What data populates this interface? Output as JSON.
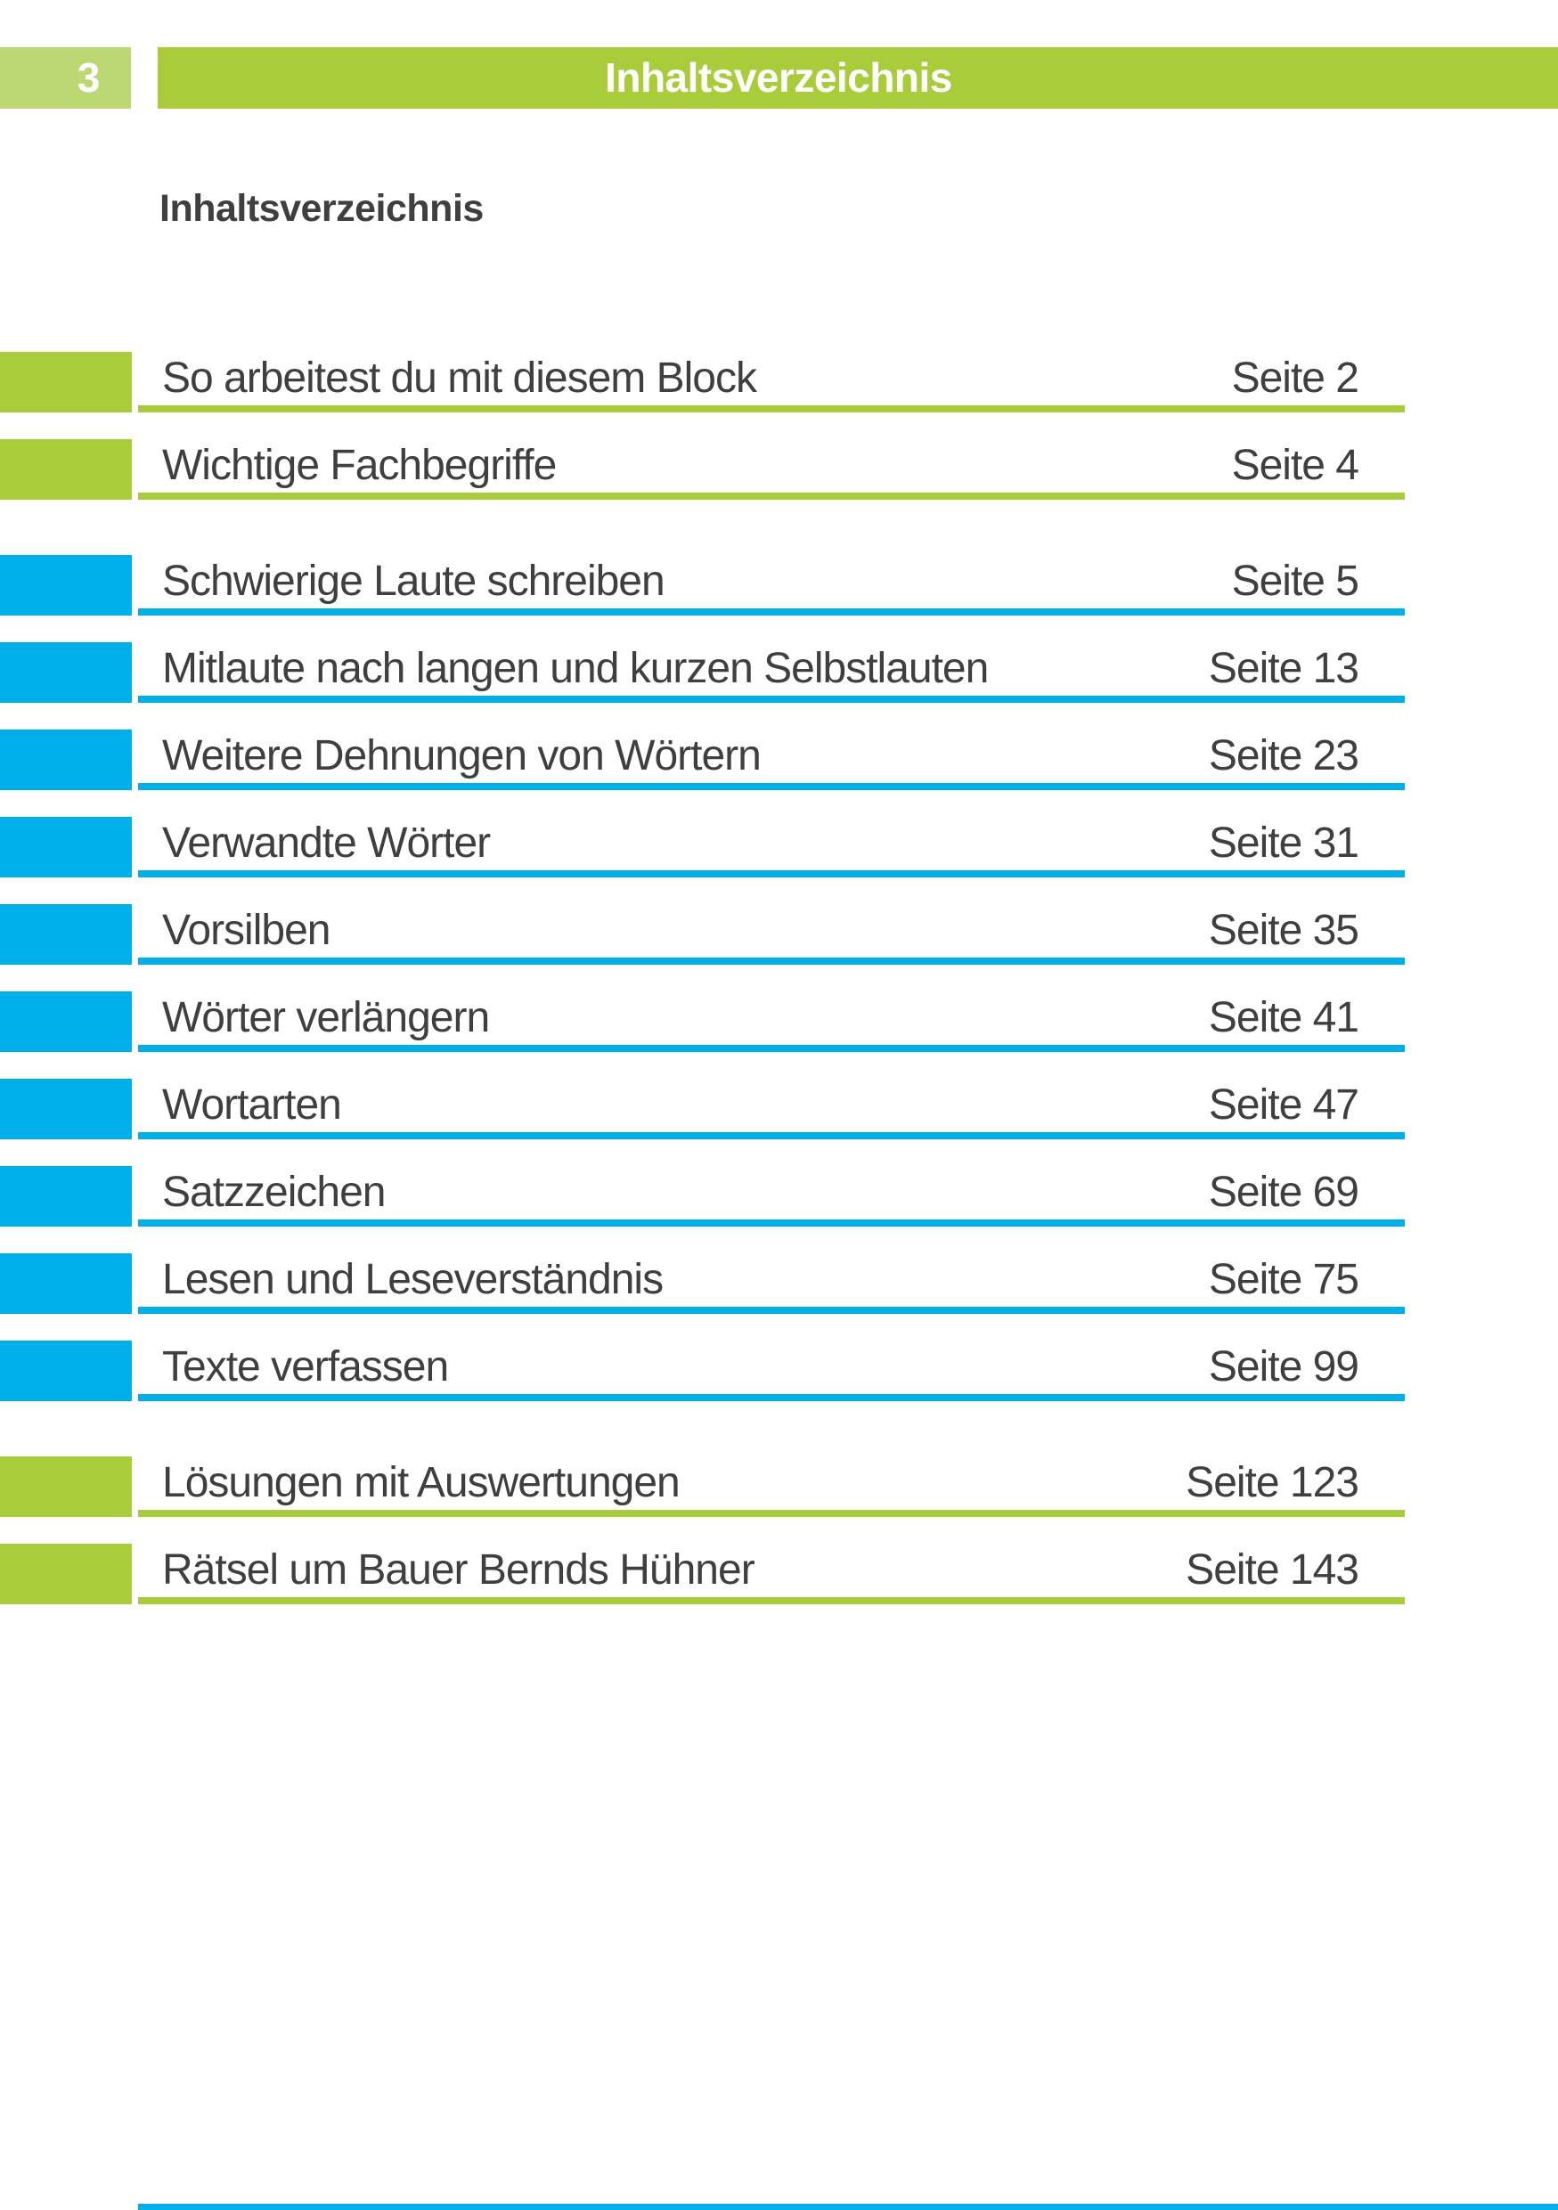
{
  "page": {
    "page_number": "3",
    "header_title": "Inhaltsverzeichnis",
    "heading": "Inhaltsverzeichnis"
  },
  "colors": {
    "green": "#a9cd3a",
    "light_green": "#bcd873",
    "blue": "#00aee9",
    "text": "#3e3f3f"
  },
  "toc": {
    "entries": [
      {
        "title": "So arbeitest du mit diesem Block",
        "page_label": "Seite 2",
        "color": "green",
        "section_start": false
      },
      {
        "title": "Wichtige Fachbegriffe",
        "page_label": "Seite 4",
        "color": "green",
        "section_start": false
      },
      {
        "title": "Schwierige Laute schreiben",
        "page_label": "Seite 5",
        "color": "blue",
        "section_start": true
      },
      {
        "title": "Mitlaute nach langen und kurzen Selbstlauten",
        "page_label": "Seite 13",
        "color": "blue",
        "section_start": false
      },
      {
        "title": "Weitere Dehnungen von Wörtern",
        "page_label": "Seite 23",
        "color": "blue",
        "section_start": false
      },
      {
        "title": "Verwandte Wörter",
        "page_label": "Seite 31",
        "color": "blue",
        "section_start": false
      },
      {
        "title": "Vorsilben",
        "page_label": "Seite 35",
        "color": "blue",
        "section_start": false
      },
      {
        "title": "Wörter verlängern",
        "page_label": "Seite 41",
        "color": "blue",
        "section_start": false
      },
      {
        "title": "Wortarten",
        "page_label": "Seite 47",
        "color": "blue",
        "section_start": false
      },
      {
        "title": "Satzzeichen",
        "page_label": "Seite 69",
        "color": "blue",
        "section_start": false
      },
      {
        "title": "Lesen und Leseverständnis",
        "page_label": "Seite 75",
        "color": "blue",
        "section_start": false
      },
      {
        "title": "Texte verfassen",
        "page_label": "Seite 99",
        "color": "blue",
        "section_start": false
      },
      {
        "title": "Lösungen mit Auswertungen",
        "page_label": "Seite 123",
        "color": "green",
        "section_start": true
      },
      {
        "title": "Rätsel um Bauer Bernds Hühner",
        "page_label": "Seite 143",
        "color": "green",
        "section_start": false
      }
    ]
  }
}
